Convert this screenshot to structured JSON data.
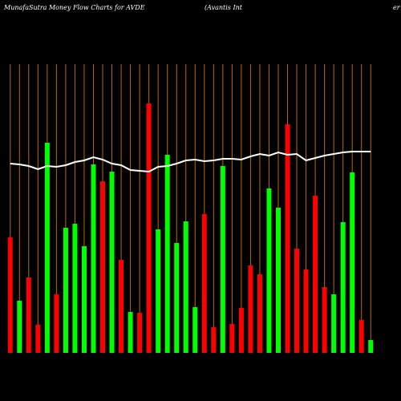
{
  "chart_data": {
    "type": "bar",
    "title": "MunafaSutra  Money Flow  Charts for AVDE",
    "subtitle": "(Avantis Int",
    "title_tail": "er",
    "values": [
      144,
      65,
      94,
      35,
      262,
      73,
      156,
      161,
      133,
      235,
      214,
      226,
      116,
      51,
      50,
      311,
      154,
      247,
      137,
      164,
      57,
      173,
      32,
      233,
      36,
      56,
      109,
      98,
      205,
      181,
      285,
      130,
      104,
      196,
      82,
      73,
      163,
      225,
      41,
      16
    ],
    "colors": [
      "#ff0000",
      "#00ff00",
      "#ff0000",
      "#ff0000",
      "#00ff00",
      "#ff0000",
      "#00ff00",
      "#00ff00",
      "#00ff00",
      "#00ff00",
      "#ff0000",
      "#00ff00",
      "#ff0000",
      "#00ff00",
      "#ff0000",
      "#ff0000",
      "#00ff00",
      "#00ff00",
      "#00ff00",
      "#00ff00",
      "#00ff00",
      "#ff0000",
      "#ff0000",
      "#00ff00",
      "#ff0000",
      "#ff0000",
      "#ff0000",
      "#ff0000",
      "#00ff00",
      "#00ff00",
      "#ff0000",
      "#ff0000",
      "#ff0000",
      "#ff0000",
      "#ff0000",
      "#00ff00",
      "#00ff00",
      "#00ff00",
      "#ff0000",
      "#00ff00"
    ],
    "line": [
      236,
      235,
      233,
      229,
      233,
      232,
      234,
      238,
      240,
      244,
      241,
      236,
      234,
      228,
      227,
      226,
      232,
      233,
      236,
      240,
      241,
      239,
      240,
      242,
      242,
      241,
      245,
      248,
      246,
      250,
      247,
      248,
      240,
      243,
      246,
      248,
      250,
      251,
      251,
      251
    ],
    "line_color": "#ffffff",
    "grid_color": "#b86a00",
    "ylim": [
      0,
      340
    ]
  }
}
